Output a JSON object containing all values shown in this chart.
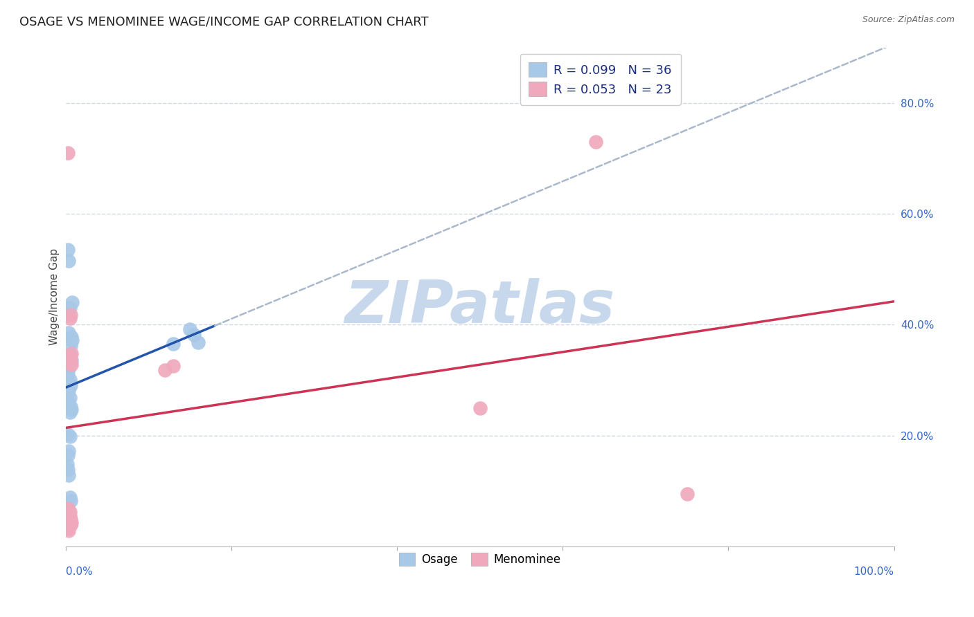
{
  "title": "OSAGE VS MENOMINEE WAGE/INCOME GAP CORRELATION CHART",
  "source": "Source: ZipAtlas.com",
  "ylabel": "Wage/Income Gap",
  "right_yticks": [
    "20.0%",
    "40.0%",
    "60.0%",
    "80.0%"
  ],
  "right_ytick_vals": [
    0.2,
    0.4,
    0.6,
    0.8
  ],
  "osage_color": "#a8c8e8",
  "osage_line_color": "#2255aa",
  "menominee_color": "#f0a8bc",
  "menominee_line_color": "#cc3355",
  "trend_dash_color": "#aab8cc",
  "watermark_color": "#c8d8ec",
  "osage_x": [
    0.005,
    0.008,
    0.003,
    0.004,
    0.006,
    0.005,
    0.007,
    0.004,
    0.003,
    0.005,
    0.006,
    0.004,
    0.003,
    0.005,
    0.004,
    0.006,
    0.007,
    0.005,
    0.004,
    0.003,
    0.002,
    0.003,
    0.004,
    0.005,
    0.006,
    0.003,
    0.004,
    0.15,
    0.155,
    0.007,
    0.008,
    0.003,
    0.005,
    0.16,
    0.006,
    0.13
  ],
  "osage_y": [
    0.43,
    0.44,
    0.425,
    0.385,
    0.375,
    0.345,
    0.335,
    0.32,
    0.31,
    0.3,
    0.29,
    0.282,
    0.278,
    0.268,
    0.258,
    0.252,
    0.247,
    0.242,
    0.172,
    0.165,
    0.148,
    0.138,
    0.128,
    0.088,
    0.082,
    0.535,
    0.515,
    0.392,
    0.382,
    0.378,
    0.372,
    0.202,
    0.198,
    0.368,
    0.362,
    0.366
  ],
  "menominee_x": [
    0.003,
    0.006,
    0.005,
    0.007,
    0.004,
    0.006,
    0.005,
    0.007,
    0.003,
    0.005,
    0.004,
    0.006,
    0.003,
    0.004,
    0.5,
    0.64,
    0.75,
    0.13,
    0.12,
    0.003,
    0.005,
    0.006,
    0.007
  ],
  "menominee_y": [
    0.71,
    0.418,
    0.412,
    0.348,
    0.342,
    0.338,
    0.332,
    0.328,
    0.068,
    0.062,
    0.042,
    0.038,
    0.032,
    0.028,
    0.25,
    0.73,
    0.095,
    0.325,
    0.318,
    0.065,
    0.055,
    0.048,
    0.042
  ],
  "xlim": [
    0.0,
    1.0
  ],
  "ylim": [
    0.0,
    0.9
  ],
  "xticks": [
    0.0,
    0.2,
    0.4,
    0.6,
    0.8,
    1.0
  ],
  "background_color": "#ffffff",
  "grid_color": "#d0d8e8",
  "title_fontsize": 13,
  "axis_tick_fontsize": 11,
  "legend_fontsize": 13,
  "legend_R_color": "#1a2d80",
  "legend_N_color": "#1a2d80",
  "watermark_text": "ZIPatlas",
  "watermark_fontsize": 62,
  "legend_osage_label": "R = 0.099   N = 36",
  "legend_menominee_label": "R = 0.053   N = 23",
  "bottom_legend_osage": "Osage",
  "bottom_legend_menominee": "Menominee",
  "osage_trendline_solid_end": 0.18,
  "menominee_trendline_solid_end": 1.0
}
